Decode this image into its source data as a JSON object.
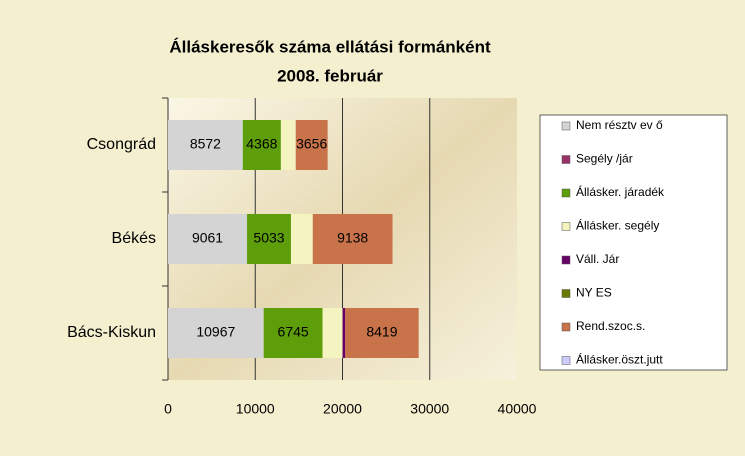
{
  "chart_data": {
    "type": "stacked_barh",
    "title": "Álláskeresők száma ellátási formánként",
    "subtitle": "2008. február",
    "categories": [
      "Csongrád",
      "Békés",
      "Bács-Kiskun"
    ],
    "series": [
      {
        "name": "Nem résztv ev ő",
        "color": "#d4d4d4",
        "values": [
          8572,
          9061,
          10967
        ],
        "data_labels": true
      },
      {
        "name": "Segély /jár",
        "color": "#993366",
        "values": [
          0,
          0,
          0
        ]
      },
      {
        "name": "Állásker. járadék",
        "color": "#5e9e0a",
        "values": [
          4368,
          5033,
          6745
        ],
        "data_labels": true
      },
      {
        "name": "Állásker. segély",
        "color": "#f4f4c0",
        "values": [
          1700,
          2500,
          2300
        ]
      },
      {
        "name": "Váll. Jár",
        "color": "#660066",
        "values": [
          0,
          0,
          300
        ]
      },
      {
        "name": "NY ES",
        "color": "#6b7a00",
        "values": [
          0,
          0,
          0
        ]
      },
      {
        "name": "Rend.szoc.s.",
        "color": "#c8734a",
        "values": [
          3656,
          9138,
          8419
        ],
        "data_labels": true
      },
      {
        "name": "Állásker.öszt.jutt",
        "color": "#ccccff",
        "values": [
          0,
          0,
          0
        ]
      }
    ],
    "xlim": [
      0,
      40000
    ],
    "xticks": [
      0,
      10000,
      20000,
      30000,
      40000
    ],
    "grid": true
  }
}
